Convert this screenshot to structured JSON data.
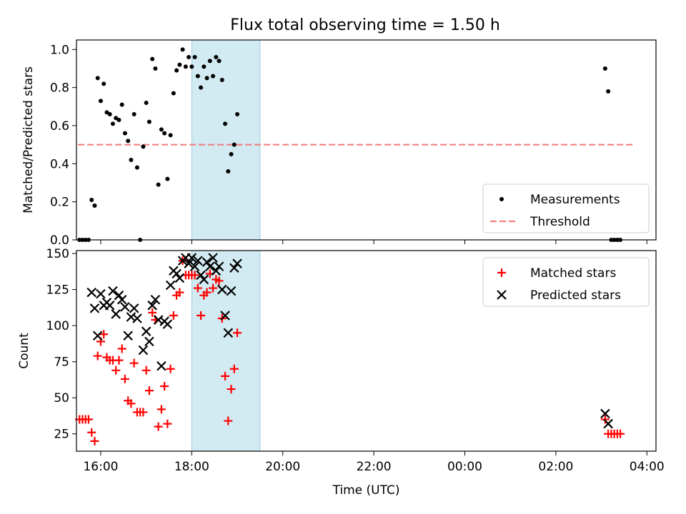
{
  "title": "Flux total observing time = 1.50 h",
  "chart_data": [
    {
      "type": "scatter",
      "ylabel": "Matched/Predicted stars",
      "xlabel": "",
      "xlim": [
        "15:28",
        "28:12"
      ],
      "ylim": [
        0,
        1.05
      ],
      "yticks": [
        "0.0",
        "0.2",
        "0.4",
        "0.6",
        "0.8",
        "1.0"
      ],
      "highlight_span": [
        "18:00",
        "19:30"
      ],
      "threshold": {
        "name": "Threshold",
        "value": 0.5,
        "x": [
          "15:30",
          "27:45"
        ],
        "color": "#f08080"
      },
      "legend": "lower-right",
      "series": [
        {
          "name": "Measurements",
          "color": "#000000",
          "points": [
            [
              "15:32",
              0
            ],
            [
              "15:36",
              0
            ],
            [
              "15:40",
              0
            ],
            [
              "15:44",
              0
            ],
            [
              "15:48",
              0.21
            ],
            [
              "15:52",
              0.18
            ],
            [
              "15:56",
              0.85
            ],
            [
              "16:00",
              0.73
            ],
            [
              "16:04",
              0.82
            ],
            [
              "16:08",
              0.67
            ],
            [
              "16:12",
              0.66
            ],
            [
              "16:16",
              0.61
            ],
            [
              "16:20",
              0.64
            ],
            [
              "16:24",
              0.63
            ],
            [
              "16:28",
              0.71
            ],
            [
              "16:32",
              0.56
            ],
            [
              "16:36",
              0.52
            ],
            [
              "16:40",
              0.42
            ],
            [
              "16:44",
              0.66
            ],
            [
              "16:48",
              0.38
            ],
            [
              "16:52",
              0
            ],
            [
              "16:56",
              0.49
            ],
            [
              "17:00",
              0.72
            ],
            [
              "17:04",
              0.62
            ],
            [
              "17:08",
              0.95
            ],
            [
              "17:12",
              0.9
            ],
            [
              "17:16",
              0.29
            ],
            [
              "17:20",
              0.58
            ],
            [
              "17:24",
              0.56
            ],
            [
              "17:28",
              0.32
            ],
            [
              "17:32",
              0.55
            ],
            [
              "17:36",
              0.77
            ],
            [
              "17:40",
              0.89
            ],
            [
              "17:44",
              0.92
            ],
            [
              "17:48",
              1.0
            ],
            [
              "17:52",
              0.91
            ],
            [
              "17:56",
              0.96
            ],
            [
              "18:00",
              0.91
            ],
            [
              "18:04",
              0.96
            ],
            [
              "18:08",
              0.86
            ],
            [
              "18:12",
              0.8
            ],
            [
              "18:16",
              0.91
            ],
            [
              "18:20",
              0.85
            ],
            [
              "18:24",
              0.94
            ],
            [
              "18:28",
              0.86
            ],
            [
              "18:32",
              0.96
            ],
            [
              "18:36",
              0.94
            ],
            [
              "18:40",
              0.84
            ],
            [
              "18:44",
              0.61
            ],
            [
              "18:48",
              0.36
            ],
            [
              "18:52",
              0.45
            ],
            [
              "18:56",
              0.5
            ],
            [
              "19:00",
              0.66
            ],
            [
              "27:05",
              0.9
            ],
            [
              "27:09",
              0.78
            ],
            [
              "27:13",
              0
            ],
            [
              "27:17",
              0
            ],
            [
              "27:21",
              0
            ],
            [
              "27:25",
              0
            ]
          ]
        }
      ]
    },
    {
      "type": "scatter",
      "ylabel": "Count",
      "xlabel": "Time (UTC)",
      "xlim": [
        "15:28",
        "28:12"
      ],
      "ylim": [
        13,
        152
      ],
      "yticks": [
        "25",
        "50",
        "75",
        "100",
        "125",
        "150"
      ],
      "xticks": [
        "16:00",
        "18:00",
        "20:00",
        "22:00",
        "00:00",
        "02:00",
        "04:00"
      ],
      "highlight_span": [
        "18:00",
        "19:30"
      ],
      "legend": "upper-right",
      "series": [
        {
          "name": "Matched stars",
          "color": "#ff0000",
          "marker": "plus",
          "points": [
            [
              "15:32",
              35
            ],
            [
              "15:36",
              35
            ],
            [
              "15:40",
              35
            ],
            [
              "15:44",
              35
            ],
            [
              "15:48",
              26
            ],
            [
              "15:52",
              20
            ],
            [
              "15:56",
              79
            ],
            [
              "16:00",
              89
            ],
            [
              "16:04",
              94
            ],
            [
              "16:08",
              78
            ],
            [
              "16:12",
              76
            ],
            [
              "16:16",
              76
            ],
            [
              "16:20",
              69
            ],
            [
              "16:24",
              76
            ],
            [
              "16:28",
              84
            ],
            [
              "16:32",
              63
            ],
            [
              "16:36",
              48
            ],
            [
              "16:40",
              46
            ],
            [
              "16:44",
              74
            ],
            [
              "16:48",
              40
            ],
            [
              "16:52",
              40
            ],
            [
              "16:56",
              40
            ],
            [
              "17:00",
              69
            ],
            [
              "17:04",
              55
            ],
            [
              "17:08",
              109
            ],
            [
              "17:12",
              104
            ],
            [
              "17:16",
              30
            ],
            [
              "17:20",
              42
            ],
            [
              "17:24",
              58
            ],
            [
              "17:28",
              32
            ],
            [
              "17:32",
              70
            ],
            [
              "17:36",
              107
            ],
            [
              "17:40",
              121
            ],
            [
              "17:44",
              123
            ],
            [
              "17:48",
              145
            ],
            [
              "17:52",
              135
            ],
            [
              "17:56",
              135
            ],
            [
              "18:00",
              135
            ],
            [
              "18:04",
              135
            ],
            [
              "18:08",
              126
            ],
            [
              "18:12",
              107
            ],
            [
              "18:16",
              121
            ],
            [
              "18:20",
              123
            ],
            [
              "18:24",
              136
            ],
            [
              "18:28",
              126
            ],
            [
              "18:32",
              132
            ],
            [
              "18:36",
              131
            ],
            [
              "18:40",
              105
            ],
            [
              "18:44",
              65
            ],
            [
              "18:48",
              34
            ],
            [
              "18:52",
              56
            ],
            [
              "18:56",
              70
            ],
            [
              "19:00",
              95
            ],
            [
              "27:05",
              35
            ],
            [
              "27:09",
              25
            ],
            [
              "27:13",
              25
            ],
            [
              "27:17",
              25
            ],
            [
              "27:21",
              25
            ],
            [
              "27:25",
              25
            ]
          ]
        },
        {
          "name": "Predicted stars",
          "color": "#000000",
          "marker": "x",
          "points": [
            [
              "15:48",
              123
            ],
            [
              "15:52",
              112
            ],
            [
              "15:56",
              93
            ],
            [
              "16:00",
              122
            ],
            [
              "16:04",
              114
            ],
            [
              "16:08",
              116
            ],
            [
              "16:12",
              114
            ],
            [
              "16:16",
              124
            ],
            [
              "16:20",
              108
            ],
            [
              "16:24",
              121
            ],
            [
              "16:28",
              118
            ],
            [
              "16:32",
              113
            ],
            [
              "16:36",
              93
            ],
            [
              "16:40",
              106
            ],
            [
              "16:44",
              112
            ],
            [
              "16:48",
              105
            ],
            [
              "16:56",
              83
            ],
            [
              "17:00",
              96
            ],
            [
              "17:04",
              89
            ],
            [
              "17:08",
              114
            ],
            [
              "17:12",
              118
            ],
            [
              "17:16",
              104
            ],
            [
              "17:20",
              72
            ],
            [
              "17:24",
              103
            ],
            [
              "17:28",
              101
            ],
            [
              "17:32",
              128
            ],
            [
              "17:36",
              138
            ],
            [
              "17:40",
              136
            ],
            [
              "17:44",
              133
            ],
            [
              "17:48",
              145
            ],
            [
              "17:52",
              147
            ],
            [
              "17:56",
              143
            ],
            [
              "18:00",
              147
            ],
            [
              "18:04",
              141
            ],
            [
              "18:08",
              145
            ],
            [
              "18:12",
              135
            ],
            [
              "18:16",
              132
            ],
            [
              "18:20",
              144
            ],
            [
              "18:24",
              141
            ],
            [
              "18:28",
              147
            ],
            [
              "18:32",
              138
            ],
            [
              "18:36",
              141
            ],
            [
              "18:40",
              125
            ],
            [
              "18:44",
              107
            ],
            [
              "18:48",
              95
            ],
            [
              "18:52",
              124
            ],
            [
              "18:56",
              140
            ],
            [
              "19:00",
              143
            ],
            [
              "27:05",
              39
            ],
            [
              "27:09",
              32
            ]
          ]
        }
      ]
    }
  ]
}
